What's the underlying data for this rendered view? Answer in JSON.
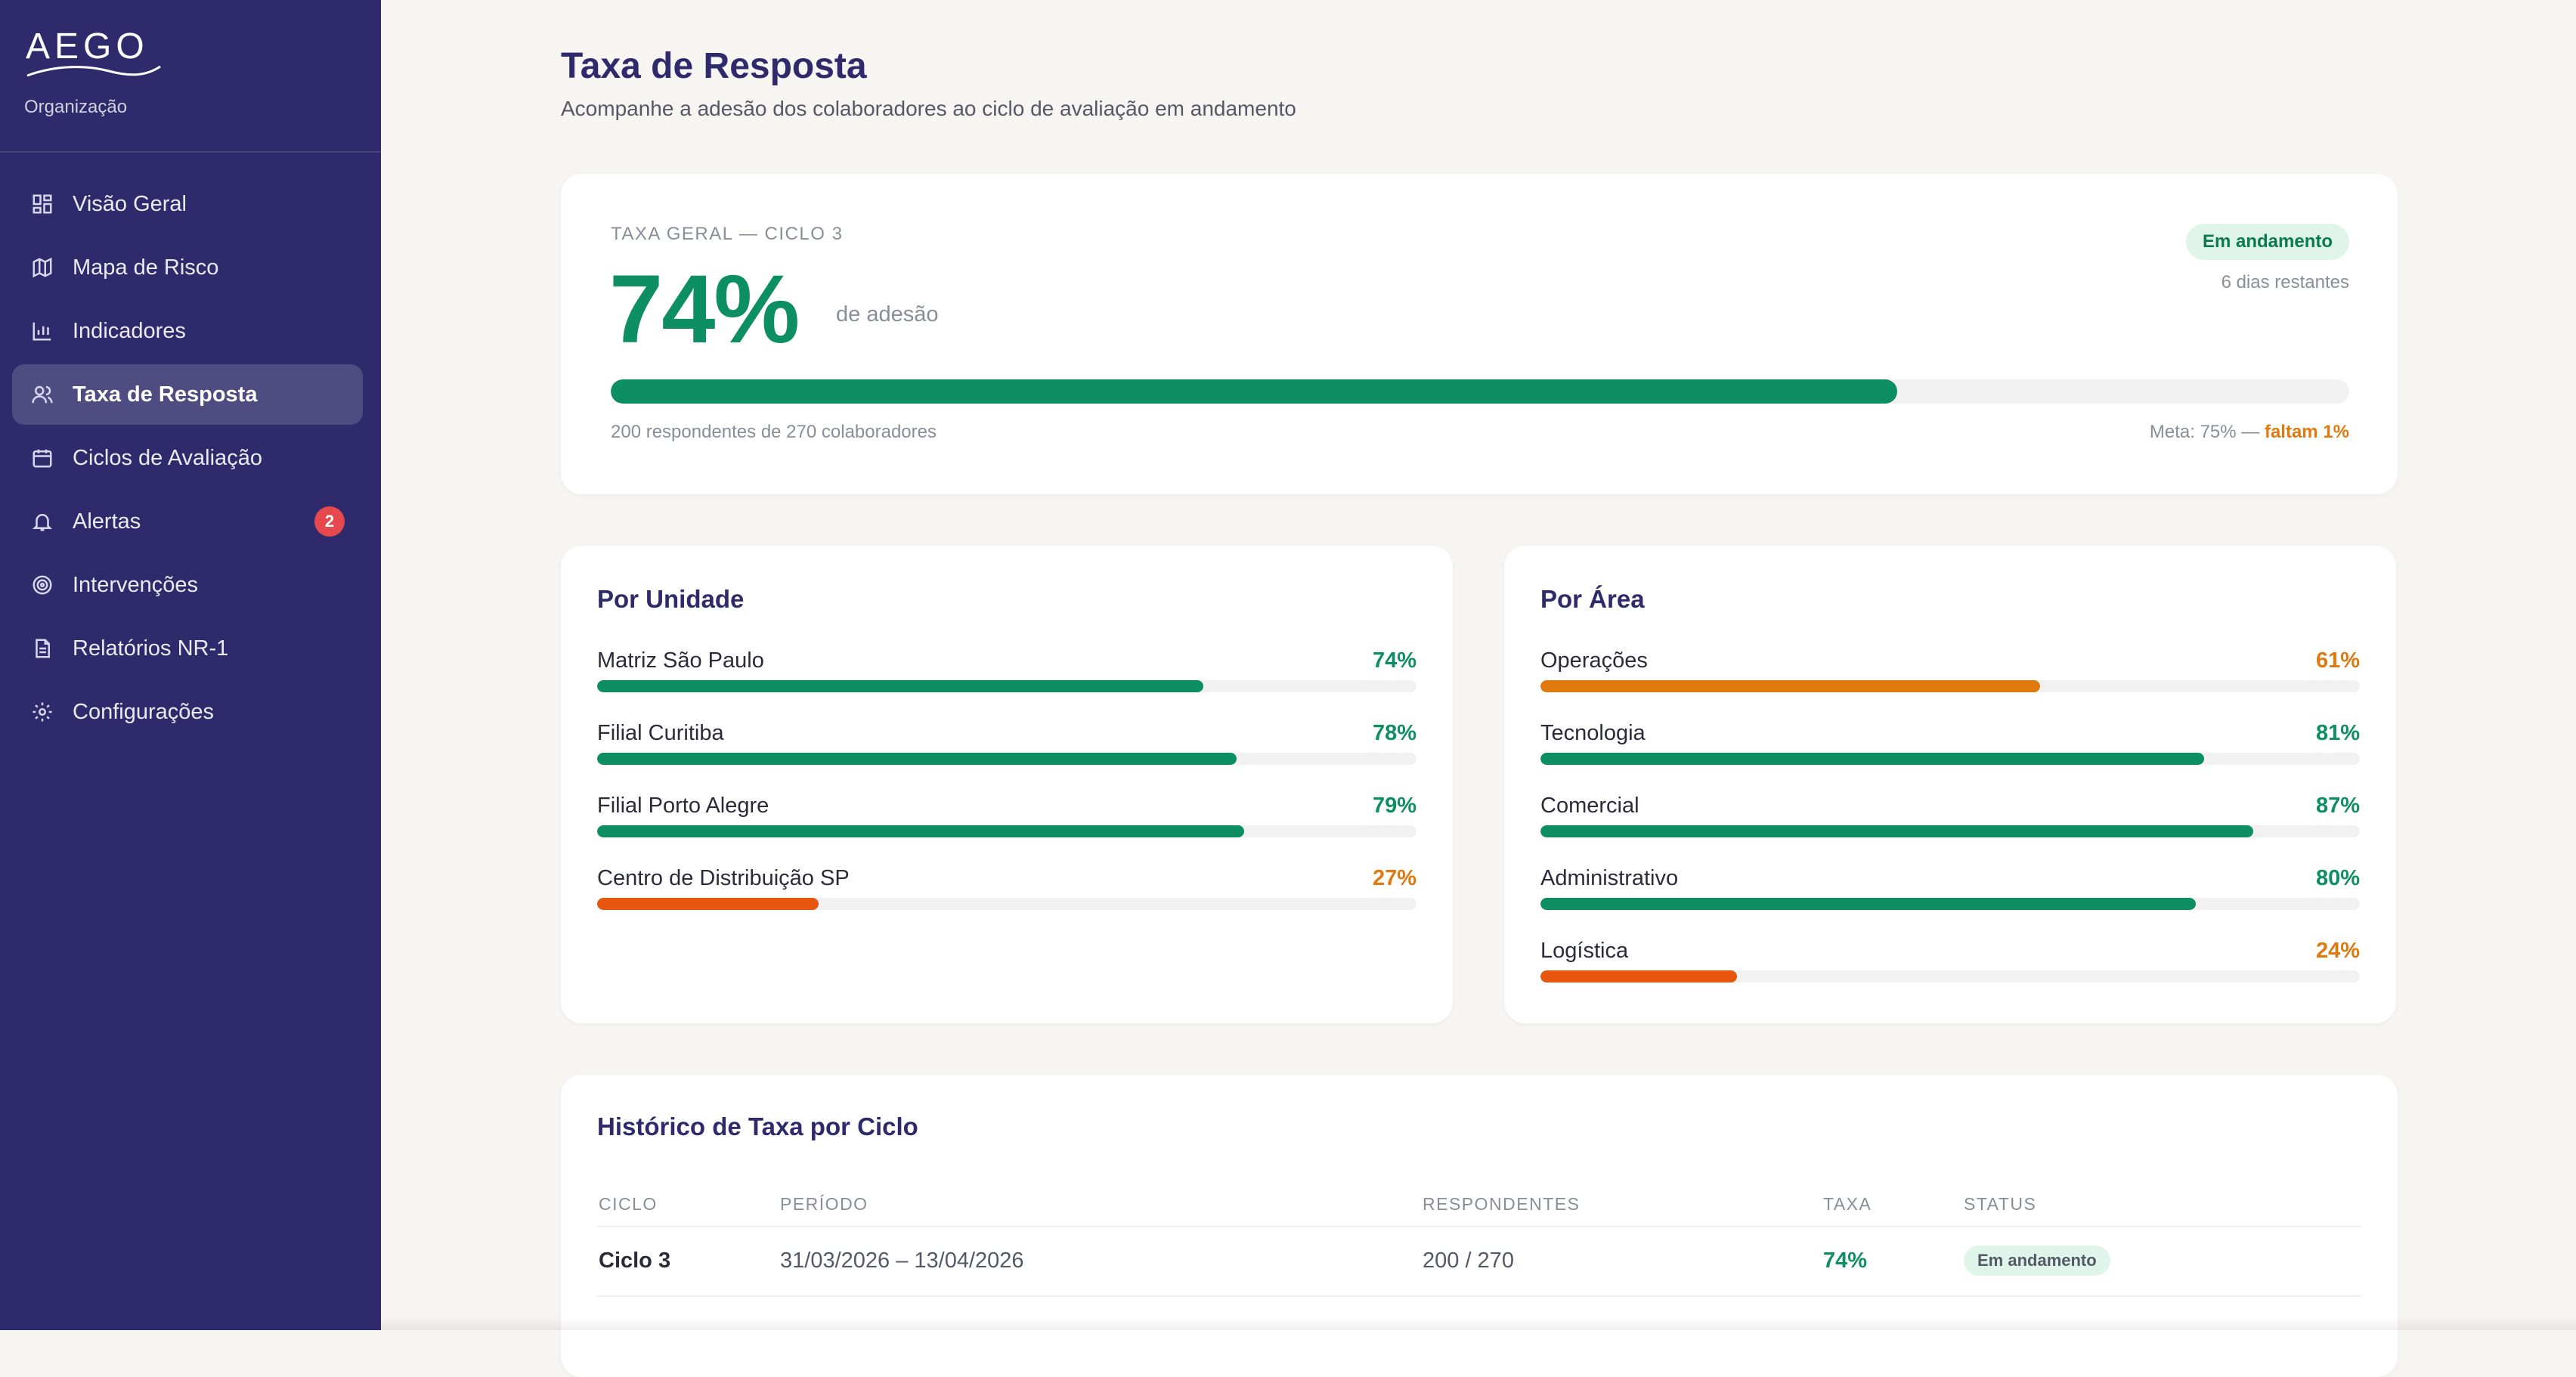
{
  "sidebar": {
    "logo_text": "AEGO",
    "org_label": "Organização",
    "items": [
      {
        "label": "Visão Geral",
        "icon": "dashboard-icon"
      },
      {
        "label": "Mapa de Risco",
        "icon": "map-icon"
      },
      {
        "label": "Indicadores",
        "icon": "bar-chart-icon"
      },
      {
        "label": "Taxa de Resposta",
        "icon": "users-icon",
        "active": true
      },
      {
        "label": "Ciclos de Avaliação",
        "icon": "calendar-icon"
      },
      {
        "label": "Alertas",
        "icon": "bell-icon",
        "badge": "2"
      },
      {
        "label": "Intervenções",
        "icon": "target-icon"
      },
      {
        "label": "Relatórios NR-1",
        "icon": "document-icon"
      },
      {
        "label": "Configurações",
        "icon": "gear-icon"
      }
    ]
  },
  "header": {
    "title": "Taxa de Resposta",
    "subtitle": "Acompanhe a adesão dos colaboradores ao ciclo de avaliação em andamento"
  },
  "overall": {
    "label": "TAXA GERAL — CICLO 3",
    "value": "74%",
    "value_suffix": "de adesão",
    "fill_fraction": 0.74,
    "status": "Em andamento",
    "days_left": "6 dias restantes",
    "respondents": "200 respondentes de 270 colaboradores",
    "meta_prefix": "Meta: 75% —",
    "meta_gap": "faltam 1%"
  },
  "by_unit": {
    "title": "Por Unidade",
    "rows": [
      {
        "name": "Matriz São Paulo",
        "pct": "74%",
        "fraction": 0.74,
        "bar_color": "#0e8f63",
        "pct_color": "#0e8f63"
      },
      {
        "name": "Filial Curitiba",
        "pct": "78%",
        "fraction": 0.78,
        "bar_color": "#0e8f63",
        "pct_color": "#0e8f63"
      },
      {
        "name": "Filial Porto Alegre",
        "pct": "79%",
        "fraction": 0.79,
        "bar_color": "#0e8f63",
        "pct_color": "#0e8f63"
      },
      {
        "name": "Centro de Distribuição SP",
        "pct": "27%",
        "fraction": 0.27,
        "bar_color": "#e6560e",
        "pct_color": "#e07a0e"
      }
    ]
  },
  "by_area": {
    "title": "Por Área",
    "rows": [
      {
        "name": "Operações",
        "pct": "61%",
        "fraction": 0.61,
        "bar_color": "#e07a0e",
        "pct_color": "#e07a0e"
      },
      {
        "name": "Tecnologia",
        "pct": "81%",
        "fraction": 0.81,
        "bar_color": "#0e8f63",
        "pct_color": "#0e8f63"
      },
      {
        "name": "Comercial",
        "pct": "87%",
        "fraction": 0.87,
        "bar_color": "#0e8f63",
        "pct_color": "#0e8f63"
      },
      {
        "name": "Administrativo",
        "pct": "80%",
        "fraction": 0.8,
        "bar_color": "#0e8f63",
        "pct_color": "#0e8f63"
      },
      {
        "name": "Logística",
        "pct": "24%",
        "fraction": 0.24,
        "bar_color": "#e6560e",
        "pct_color": "#e07a0e"
      }
    ]
  },
  "history": {
    "title": "Histórico de Taxa por Ciclo",
    "columns": [
      "CICLO",
      "PERÍODO",
      "RESPONDENTES",
      "TAXA",
      "STATUS"
    ],
    "rows": [
      {
        "ciclo": "Ciclo 3",
        "periodo": "31/03/2026 – 13/04/2026",
        "respondentes": "200 / 270",
        "taxa": "74%",
        "status": "Em andamento"
      }
    ]
  },
  "colors": {
    "sidebar_bg": "#2e2a6b",
    "accent_green": "#0e8f63",
    "accent_orange": "#e07a0e",
    "accent_red_orange": "#e6560e",
    "badge_red": "#e5484d"
  }
}
